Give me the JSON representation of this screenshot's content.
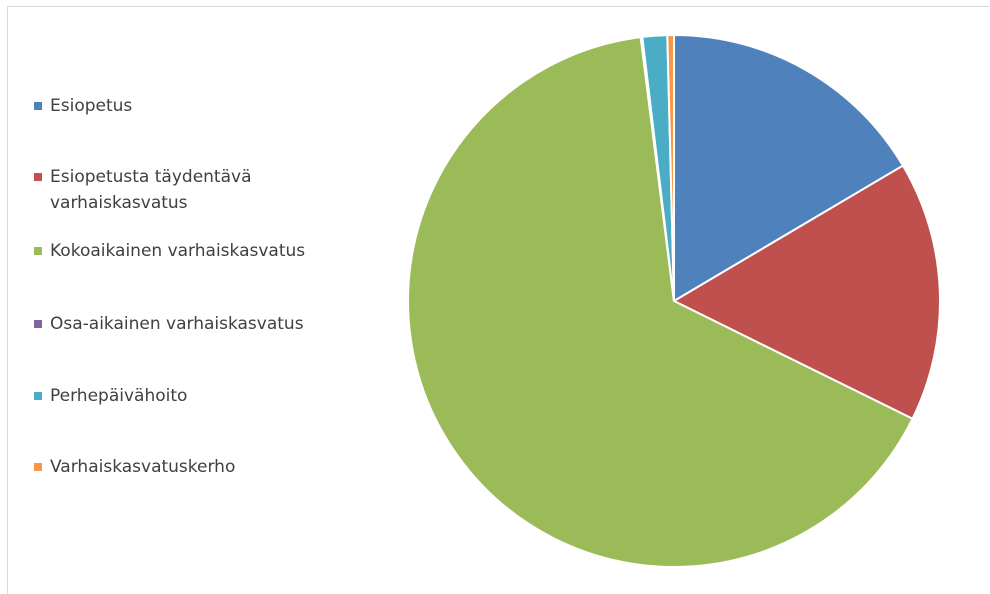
{
  "chart_data": {
    "type": "pie",
    "title": "",
    "categories": [
      "Esiopetus",
      "Esiopetusta täydentävä varhaiskasvatus",
      "Kokoaikainen varhaiskasvatus",
      "Osa-aikainen varhaiskasvatus",
      "Perhepäivähoito",
      "Varhaiskasvatuskerho"
    ],
    "values": [
      16.5,
      15.8,
      65.7,
      0.1,
      1.5,
      0.4
    ],
    "colors": [
      "#4f81bd",
      "#c0504d",
      "#9bbb59",
      "#8064a2",
      "#4bacc6",
      "#f79646"
    ],
    "legend_position": "left",
    "start_angle_deg": 0,
    "direction": "clockwise"
  }
}
